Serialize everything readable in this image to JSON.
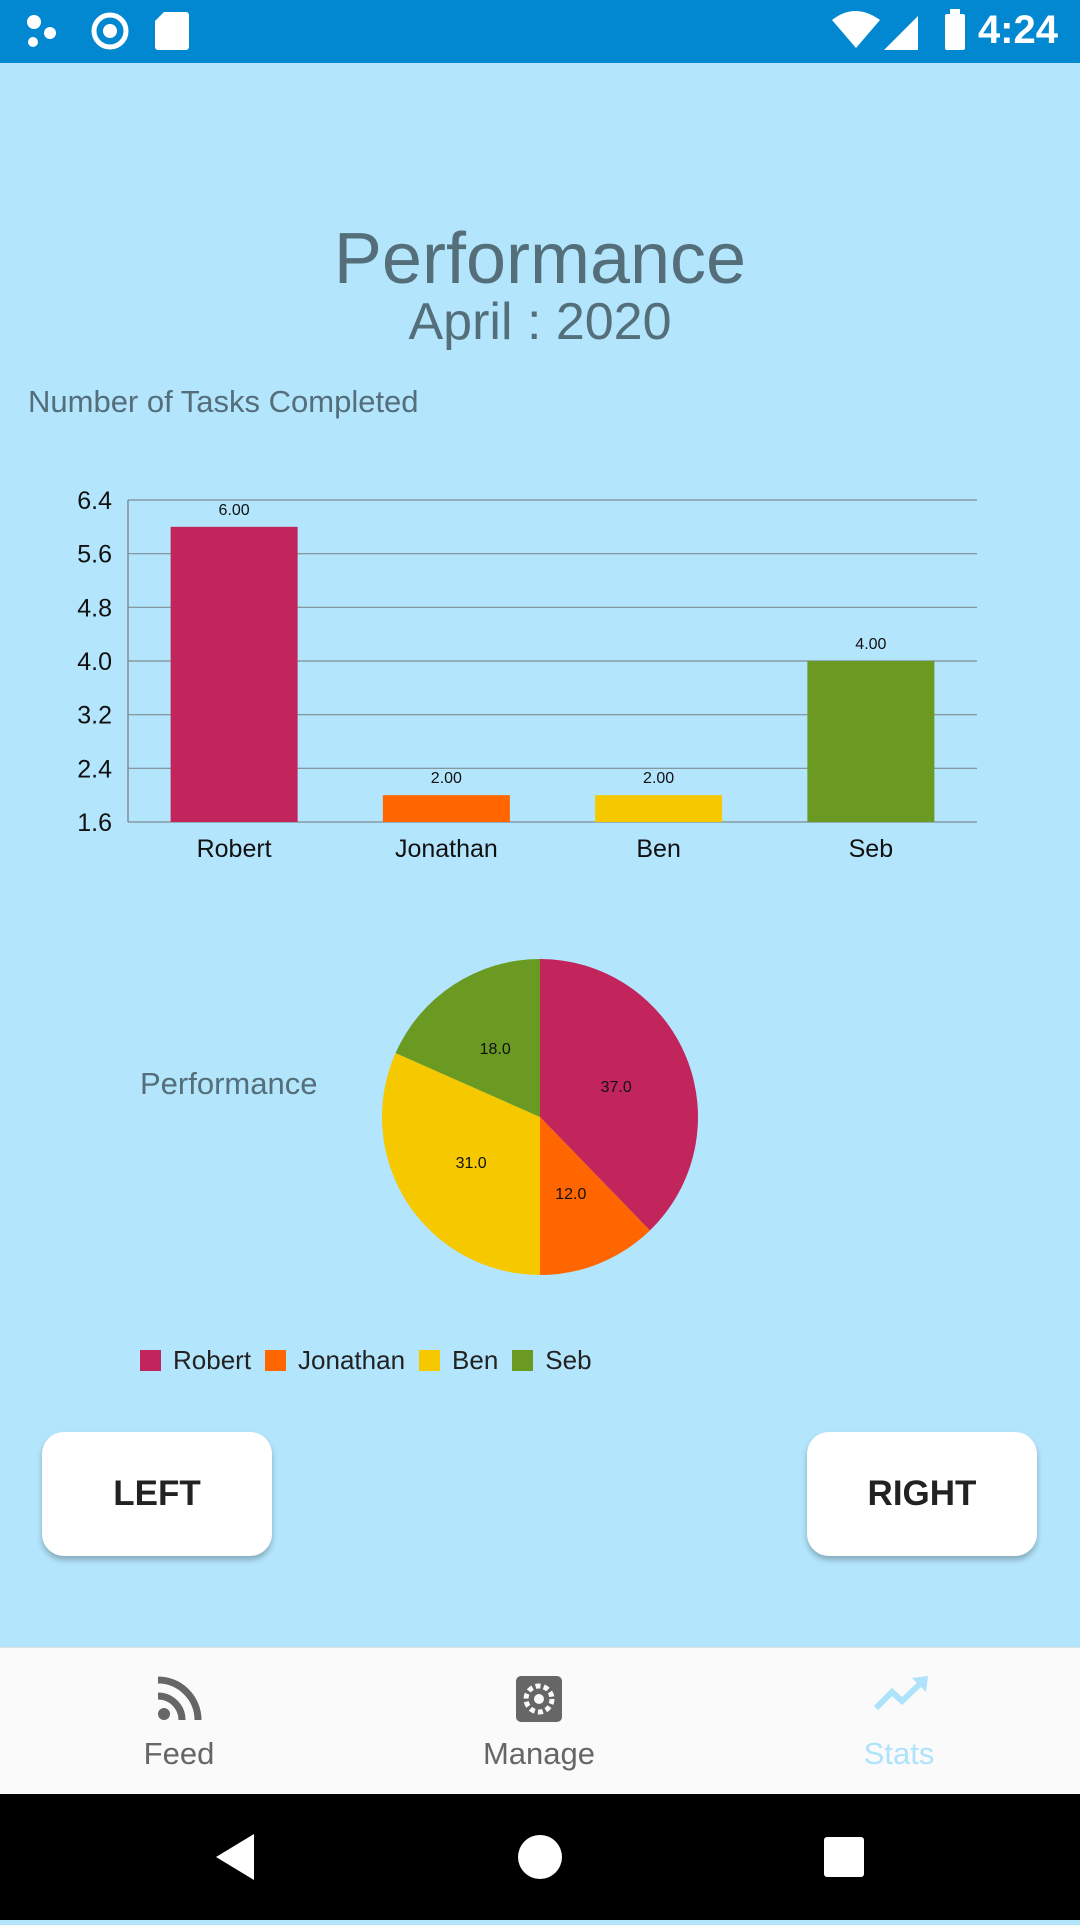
{
  "status_bar": {
    "time": "4:24"
  },
  "header": {
    "title": "Performance",
    "subtitle": "April : 2020"
  },
  "bar_section_label": "Number of Tasks Completed",
  "pie_section_label": "Performance",
  "colors": {
    "Robert": "#c2255c",
    "Jonathan": "#ff6600",
    "Ben": "#f5c800",
    "Seb": "#6b9a22"
  },
  "chart_data": [
    {
      "type": "bar",
      "title": "Number of Tasks Completed",
      "categories": [
        "Robert",
        "Jonathan",
        "Ben",
        "Seb"
      ],
      "values": [
        6.0,
        2.0,
        2.0,
        4.0
      ],
      "value_labels": [
        "6.00",
        "2.00",
        "2.00",
        "4.00"
      ],
      "yticks": [
        "6.4",
        "5.6",
        "4.8",
        "4.0",
        "3.2",
        "2.4",
        "1.6"
      ],
      "ylim": [
        1.6,
        6.4
      ],
      "grid": true,
      "legend": "none"
    },
    {
      "type": "pie",
      "title": "Performance",
      "labels": [
        "Robert",
        "Jonathan",
        "Ben",
        "Seb"
      ],
      "values": [
        37.0,
        12.0,
        31.0,
        18.0
      ],
      "value_labels": [
        "37.0",
        "12.0",
        "31.0",
        "18.0"
      ],
      "legend": "bottom-left"
    }
  ],
  "legend": [
    {
      "label": "Robert"
    },
    {
      "label": "Jonathan"
    },
    {
      "label": "Ben"
    },
    {
      "label": "Seb"
    }
  ],
  "buttons": {
    "left": "LEFT",
    "right": "RIGHT"
  },
  "bottom_nav": [
    {
      "label": "Feed",
      "icon": "rss-icon"
    },
    {
      "label": "Manage",
      "icon": "gear-icon"
    },
    {
      "label": "Stats",
      "icon": "trending-up-icon",
      "active": true
    }
  ]
}
